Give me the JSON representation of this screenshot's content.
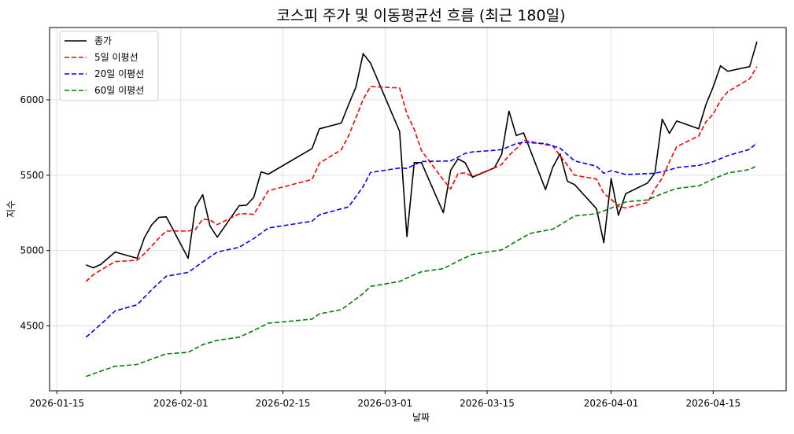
{
  "chart_data": {
    "type": "line",
    "title": "코스피 주가 및 이동평균선 흐름 (최근 180일)",
    "xlabel": "날짜",
    "ylabel": "지수",
    "grid": true,
    "legend_position": "upper left",
    "x_ticks": [
      "2026-01-15",
      "2026-02-01",
      "2026-02-15",
      "2026-03-01",
      "2026-03-15",
      "2026-04-01",
      "2026-04-15"
    ],
    "y_ticks": [
      4500,
      5000,
      5500,
      6000
    ],
    "xlim": [
      "2026-01-14",
      "2026-04-25"
    ],
    "ylim": [
      4070,
      6480
    ],
    "series": [
      {
        "name": "종가",
        "color": "#000000",
        "dash": "solid",
        "points": [
          [
            "2026-01-19",
            4905
          ],
          [
            "2026-01-20",
            4886
          ],
          [
            "2026-01-21",
            4908
          ],
          [
            "2026-01-23",
            4990
          ],
          [
            "2026-01-26",
            4949
          ],
          [
            "2026-01-27",
            5085
          ],
          [
            "2026-01-28",
            5170
          ],
          [
            "2026-01-29",
            5221
          ],
          [
            "2026-01-30",
            5224
          ],
          [
            "2026-02-02",
            4949
          ],
          [
            "2026-02-03",
            5288
          ],
          [
            "2026-02-04",
            5371
          ],
          [
            "2026-02-05",
            5163
          ],
          [
            "2026-02-06",
            5089
          ],
          [
            "2026-02-09",
            5298
          ],
          [
            "2026-02-10",
            5301
          ],
          [
            "2026-02-11",
            5354
          ],
          [
            "2026-02-12",
            5522
          ],
          [
            "2026-02-13",
            5507
          ],
          [
            "2026-02-19",
            5677
          ],
          [
            "2026-02-20",
            5808
          ],
          [
            "2026-02-23",
            5846
          ],
          [
            "2026-02-24",
            5969
          ],
          [
            "2026-02-25",
            6083
          ],
          [
            "2026-02-26",
            6307
          ],
          [
            "2026-02-27",
            6244
          ],
          [
            "2026-03-03",
            5791
          ],
          [
            "2026-03-04",
            5093
          ],
          [
            "2026-03-05",
            5584
          ],
          [
            "2026-03-06",
            5584
          ],
          [
            "2026-03-09",
            5251
          ],
          [
            "2026-03-10",
            5532
          ],
          [
            "2026-03-11",
            5609
          ],
          [
            "2026-03-12",
            5583
          ],
          [
            "2026-03-13",
            5487
          ],
          [
            "2026-03-16",
            5549
          ],
          [
            "2026-03-17",
            5640
          ],
          [
            "2026-03-18",
            5925
          ],
          [
            "2026-03-19",
            5763
          ],
          [
            "2026-03-20",
            5781
          ],
          [
            "2026-03-23",
            5405
          ],
          [
            "2026-03-24",
            5553
          ],
          [
            "2026-03-25",
            5642
          ],
          [
            "2026-03-26",
            5460
          ],
          [
            "2026-03-27",
            5438
          ],
          [
            "2026-03-30",
            5278
          ],
          [
            "2026-03-31",
            5052
          ],
          [
            "2026-04-01",
            5478
          ],
          [
            "2026-04-02",
            5234
          ],
          [
            "2026-04-03",
            5377
          ],
          [
            "2026-04-06",
            5448
          ],
          [
            "2026-04-07",
            5514
          ],
          [
            "2026-04-08",
            5872
          ],
          [
            "2026-04-09",
            5778
          ],
          [
            "2026-04-10",
            5860
          ],
          [
            "2026-04-13",
            5808
          ],
          [
            "2026-04-14",
            5969
          ],
          [
            "2026-04-15",
            6086
          ],
          [
            "2026-04-16",
            6226
          ],
          [
            "2026-04-17",
            6190
          ],
          [
            "2026-04-20",
            6221
          ],
          [
            "2026-04-21",
            6386
          ]
        ]
      },
      {
        "name": "5일 이평선",
        "color": "#ff0000",
        "dash": "dashed",
        "points": [
          [
            "2026-01-19",
            4795
          ],
          [
            "2026-01-20",
            4840
          ],
          [
            "2026-01-21",
            4870
          ],
          [
            "2026-01-23",
            4927
          ],
          [
            "2026-01-26",
            4936
          ],
          [
            "2026-01-27",
            4980
          ],
          [
            "2026-01-28",
            5030
          ],
          [
            "2026-01-29",
            5083
          ],
          [
            "2026-01-30",
            5130
          ],
          [
            "2026-02-02",
            5130
          ],
          [
            "2026-02-03",
            5140
          ],
          [
            "2026-02-04",
            5209
          ],
          [
            "2026-02-05",
            5203
          ],
          [
            "2026-02-06",
            5172
          ],
          [
            "2026-02-09",
            5244
          ],
          [
            "2026-02-10",
            5244
          ],
          [
            "2026-02-11",
            5240
          ],
          [
            "2026-02-12",
            5319
          ],
          [
            "2026-02-13",
            5397
          ],
          [
            "2026-02-19",
            5472
          ],
          [
            "2026-02-20",
            5580
          ],
          [
            "2026-02-23",
            5669
          ],
          [
            "2026-02-24",
            5762
          ],
          [
            "2026-02-25",
            5880
          ],
          [
            "2026-02-26",
            6003
          ],
          [
            "2026-02-27",
            6088
          ],
          [
            "2026-03-03",
            6079
          ],
          [
            "2026-03-04",
            5906
          ],
          [
            "2026-03-05",
            5805
          ],
          [
            "2026-03-06",
            5663
          ],
          [
            "2026-03-09",
            5469
          ],
          [
            "2026-03-10",
            5409
          ],
          [
            "2026-03-11",
            5510
          ],
          [
            "2026-03-12",
            5516
          ],
          [
            "2026-03-13",
            5491
          ],
          [
            "2026-03-16",
            5549
          ],
          [
            "2026-03-17",
            5572
          ],
          [
            "2026-03-18",
            5632
          ],
          [
            "2026-03-19",
            5675
          ],
          [
            "2026-03-20",
            5732
          ],
          [
            "2026-03-23",
            5703
          ],
          [
            "2026-03-24",
            5695
          ],
          [
            "2026-03-25",
            5629
          ],
          [
            "2026-03-26",
            5568
          ],
          [
            "2026-03-27",
            5500
          ],
          [
            "2026-03-30",
            5475
          ],
          [
            "2026-03-31",
            5380
          ],
          [
            "2026-04-01",
            5341
          ],
          [
            "2026-04-02",
            5293
          ],
          [
            "2026-04-03",
            5283
          ],
          [
            "2026-04-06",
            5319
          ],
          [
            "2026-04-07",
            5410
          ],
          [
            "2026-04-08",
            5480
          ],
          [
            "2026-04-09",
            5590
          ],
          [
            "2026-04-10",
            5690
          ],
          [
            "2026-04-13",
            5760
          ],
          [
            "2026-04-14",
            5855
          ],
          [
            "2026-04-15",
            5905
          ],
          [
            "2026-04-16",
            5996
          ],
          [
            "2026-04-17",
            6055
          ],
          [
            "2026-04-20",
            6140
          ],
          [
            "2026-04-21",
            6220
          ]
        ]
      },
      {
        "name": "20일 이평선",
        "color": "#0000ff",
        "dash": "dashed",
        "points": [
          [
            "2026-01-19",
            4425
          ],
          [
            "2026-01-21",
            4510
          ],
          [
            "2026-01-23",
            4600
          ],
          [
            "2026-01-26",
            4640
          ],
          [
            "2026-01-28",
            4740
          ],
          [
            "2026-01-30",
            4830
          ],
          [
            "2026-02-02",
            4855
          ],
          [
            "2026-02-04",
            4925
          ],
          [
            "2026-02-06",
            4990
          ],
          [
            "2026-02-09",
            5022
          ],
          [
            "2026-02-11",
            5080
          ],
          [
            "2026-02-13",
            5150
          ],
          [
            "2026-02-19",
            5195
          ],
          [
            "2026-02-20",
            5238
          ],
          [
            "2026-02-24",
            5290
          ],
          [
            "2026-02-26",
            5425
          ],
          [
            "2026-02-27",
            5518
          ],
          [
            "2026-03-03",
            5548
          ],
          [
            "2026-03-04",
            5545
          ],
          [
            "2026-03-06",
            5591
          ],
          [
            "2026-03-10",
            5595
          ],
          [
            "2026-03-12",
            5645
          ],
          [
            "2026-03-13",
            5655
          ],
          [
            "2026-03-16",
            5665
          ],
          [
            "2026-03-17",
            5670
          ],
          [
            "2026-03-19",
            5710
          ],
          [
            "2026-03-20",
            5718
          ],
          [
            "2026-03-23",
            5710
          ],
          [
            "2026-03-25",
            5680
          ],
          [
            "2026-03-27",
            5595
          ],
          [
            "2026-03-30",
            5560
          ],
          [
            "2026-03-31",
            5513
          ],
          [
            "2026-04-01",
            5530
          ],
          [
            "2026-04-03",
            5505
          ],
          [
            "2026-04-07",
            5513
          ],
          [
            "2026-04-09",
            5535
          ],
          [
            "2026-04-10",
            5551
          ],
          [
            "2026-04-13",
            5565
          ],
          [
            "2026-04-15",
            5590
          ],
          [
            "2026-04-17",
            5630
          ],
          [
            "2026-04-20",
            5672
          ],
          [
            "2026-04-21",
            5715
          ]
        ]
      },
      {
        "name": "60일 이평선",
        "color": "#008000",
        "dash": "dashed",
        "points": [
          [
            "2026-01-19",
            4165
          ],
          [
            "2026-01-21",
            4200
          ],
          [
            "2026-01-23",
            4232
          ],
          [
            "2026-01-26",
            4245
          ],
          [
            "2026-01-28",
            4280
          ],
          [
            "2026-01-30",
            4315
          ],
          [
            "2026-02-02",
            4325
          ],
          [
            "2026-02-04",
            4375
          ],
          [
            "2026-02-06",
            4405
          ],
          [
            "2026-02-09",
            4425
          ],
          [
            "2026-02-11",
            4470
          ],
          [
            "2026-02-13",
            4518
          ],
          [
            "2026-02-19",
            4545
          ],
          [
            "2026-02-20",
            4580
          ],
          [
            "2026-02-23",
            4608
          ],
          [
            "2026-02-26",
            4715
          ],
          [
            "2026-02-27",
            4762
          ],
          [
            "2026-03-03",
            4795
          ],
          [
            "2026-03-04",
            4818
          ],
          [
            "2026-03-06",
            4860
          ],
          [
            "2026-03-09",
            4880
          ],
          [
            "2026-03-11",
            4930
          ],
          [
            "2026-03-13",
            4975
          ],
          [
            "2026-03-17",
            5005
          ],
          [
            "2026-03-20",
            5090
          ],
          [
            "2026-03-21",
            5115
          ],
          [
            "2026-03-24",
            5142
          ],
          [
            "2026-03-26",
            5200
          ],
          [
            "2026-03-27",
            5230
          ],
          [
            "2026-03-30",
            5245
          ],
          [
            "2026-04-01",
            5282
          ],
          [
            "2026-04-03",
            5323
          ],
          [
            "2026-04-06",
            5336
          ],
          [
            "2026-04-08",
            5378
          ],
          [
            "2026-04-10",
            5412
          ],
          [
            "2026-04-13",
            5429
          ],
          [
            "2026-04-15",
            5475
          ],
          [
            "2026-04-17",
            5515
          ],
          [
            "2026-04-20",
            5538
          ],
          [
            "2026-04-21",
            5563
          ]
        ]
      }
    ]
  }
}
